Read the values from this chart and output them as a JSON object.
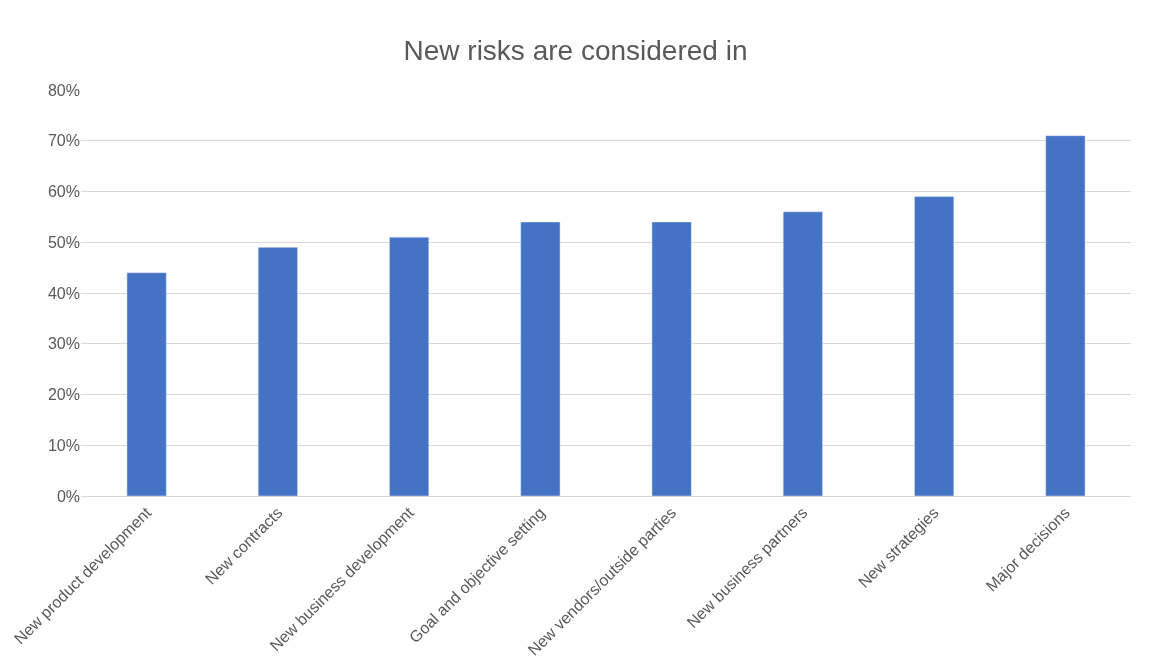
{
  "chart_data": {
    "type": "bar",
    "title": "New risks are considered in",
    "categories": [
      "New product development",
      "New contracts",
      "New business development",
      "Goal and objective setting",
      "New vendors/outside parties",
      "New business partners",
      "New strategies",
      "Major decisions"
    ],
    "values": [
      44,
      49,
      51,
      54,
      54,
      56,
      59,
      71
    ],
    "color": "#4472c4",
    "ylim": [
      0,
      80
    ],
    "yticks": [
      {
        "value": 0,
        "label": "0%"
      },
      {
        "value": 10,
        "label": "10%"
      },
      {
        "value": 20,
        "label": "20%"
      },
      {
        "value": 30,
        "label": "30%"
      },
      {
        "value": 40,
        "label": "40%"
      },
      {
        "value": 50,
        "label": "50%"
      },
      {
        "value": 60,
        "label": "60%"
      },
      {
        "value": 70,
        "label": "70%"
      },
      {
        "value": 80,
        "label": "80%"
      }
    ],
    "grid": "y"
  }
}
